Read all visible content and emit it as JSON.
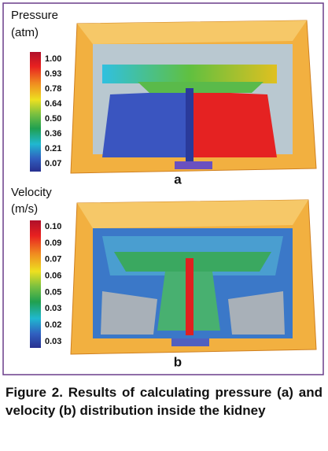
{
  "figure": {
    "panels": [
      {
        "legend_title": "Pressure",
        "legend_unit": "(atm)",
        "scale_labels": [
          "1.00",
          "0.93",
          "0.78",
          "0.64",
          "0.50",
          "0.36",
          "0.21",
          "0.07"
        ],
        "label": "a"
      },
      {
        "legend_title": "Velocity",
        "legend_unit": "(m/s)",
        "scale_labels": [
          "0.10",
          "0.09",
          "0.07",
          "0.06",
          "0.05",
          "0.03",
          "0.02",
          "0.03"
        ],
        "label": "b"
      }
    ]
  },
  "caption": "Figure 2. Results of calculating pressure (a) and velocity (b) distribution inside the kidney"
}
